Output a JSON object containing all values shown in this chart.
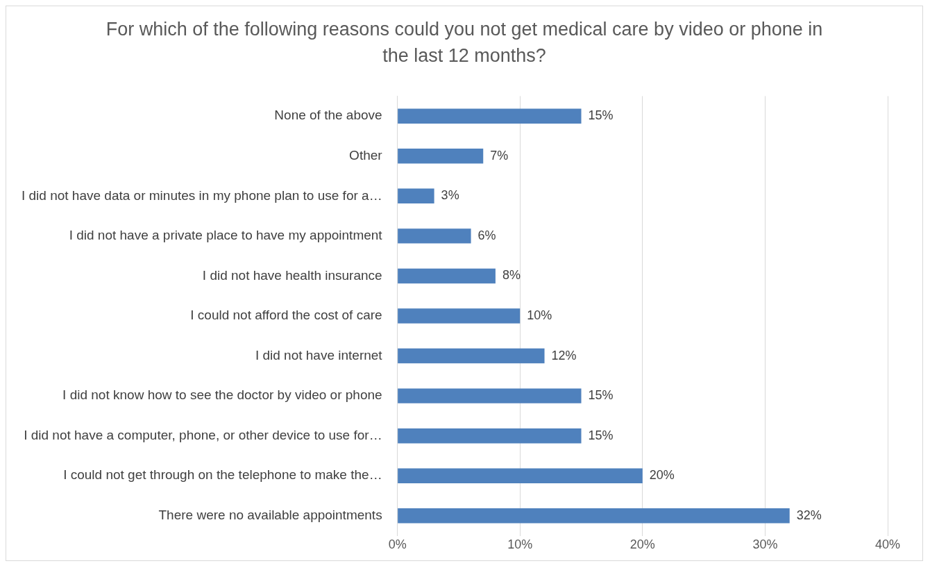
{
  "chart_data": {
    "type": "bar",
    "orientation": "horizontal",
    "title": "For which of the following reasons could you not get medical care by video or phone in the last 12 months?",
    "categories": [
      "None of the above",
      "Other",
      "I did not have data or minutes in my phone plan to use for a…",
      "I did not have a private place to have my appointment",
      "I did not have health insurance",
      "I could not afford the cost of care",
      "I did not have internet",
      "I did not know how to see the doctor by video or phone",
      "I did not have a computer, phone, or other device to use for…",
      "I could not get through on the telephone to make the…",
      "There were no available appointments"
    ],
    "values": [
      15,
      7,
      3,
      6,
      8,
      10,
      12,
      15,
      15,
      20,
      32
    ],
    "value_labels": [
      "15%",
      "7%",
      "3%",
      "6%",
      "8%",
      "10%",
      "12%",
      "15%",
      "15%",
      "20%",
      "32%"
    ],
    "color": "#4f81bd",
    "xlim": [
      0,
      40
    ],
    "xticks": [
      {
        "value": 0,
        "label": "0%"
      },
      {
        "value": 10,
        "label": "10%"
      },
      {
        "value": 20,
        "label": "20%"
      },
      {
        "value": 30,
        "label": "30%"
      },
      {
        "value": 40,
        "label": "40%"
      }
    ],
    "grid": "x",
    "legend": false
  }
}
